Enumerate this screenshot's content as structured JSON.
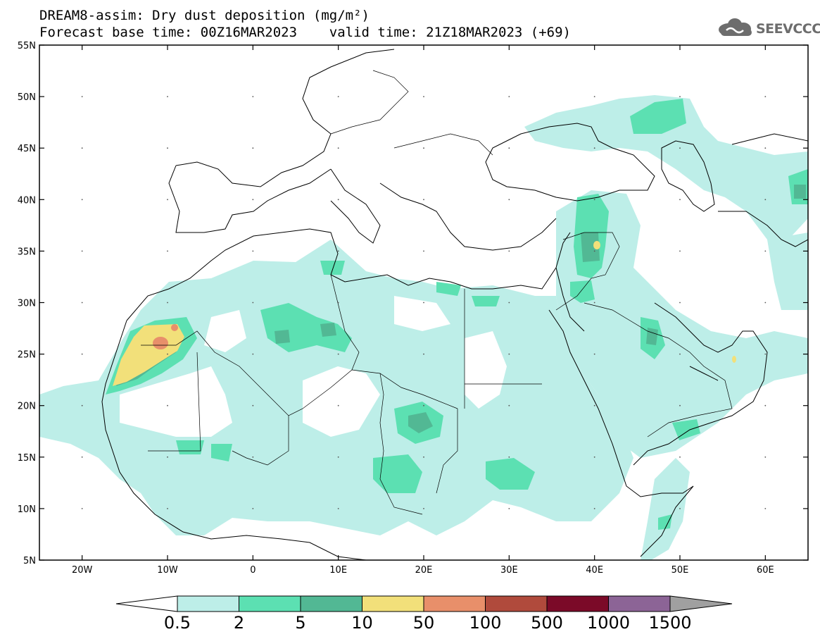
{
  "header": {
    "title_line1": "DREAM8-assim: Dry dust deposition (mg/m²)",
    "title_line2": "Forecast base time: 00Z16MAR2023    valid time: 21Z18MAR2023 (+69)",
    "logo_text": "SEEVCCC",
    "logo_icon": "cloud-logo-icon"
  },
  "map": {
    "lon_range": [
      -25,
      65
    ],
    "lat_range": [
      5,
      55
    ],
    "background": "#ffffff",
    "coastline_color": "#000000",
    "lat_ticks": [
      "55N",
      "50N",
      "45N",
      "40N",
      "35N",
      "30N",
      "25N",
      "20N",
      "15N",
      "10N",
      "5N"
    ],
    "lon_ticks": [
      "20W",
      "10W",
      "0",
      "10E",
      "20E",
      "30E",
      "40E",
      "50E",
      "60E"
    ]
  },
  "legend": {
    "labels": [
      "0.5",
      "2",
      "5",
      "10",
      "50",
      "100",
      "500",
      "1000",
      "1500"
    ],
    "colors": [
      "#bdeee8",
      "#5ce0b2",
      "#52b894",
      "#f2e07a",
      "#e88f6a",
      "#b04a3c",
      "#7b0a28",
      "#8c6496",
      "#a0a0a0"
    ],
    "left_arrow_color": "#ffffff",
    "right_arrow_color": "#a0a0a0"
  }
}
